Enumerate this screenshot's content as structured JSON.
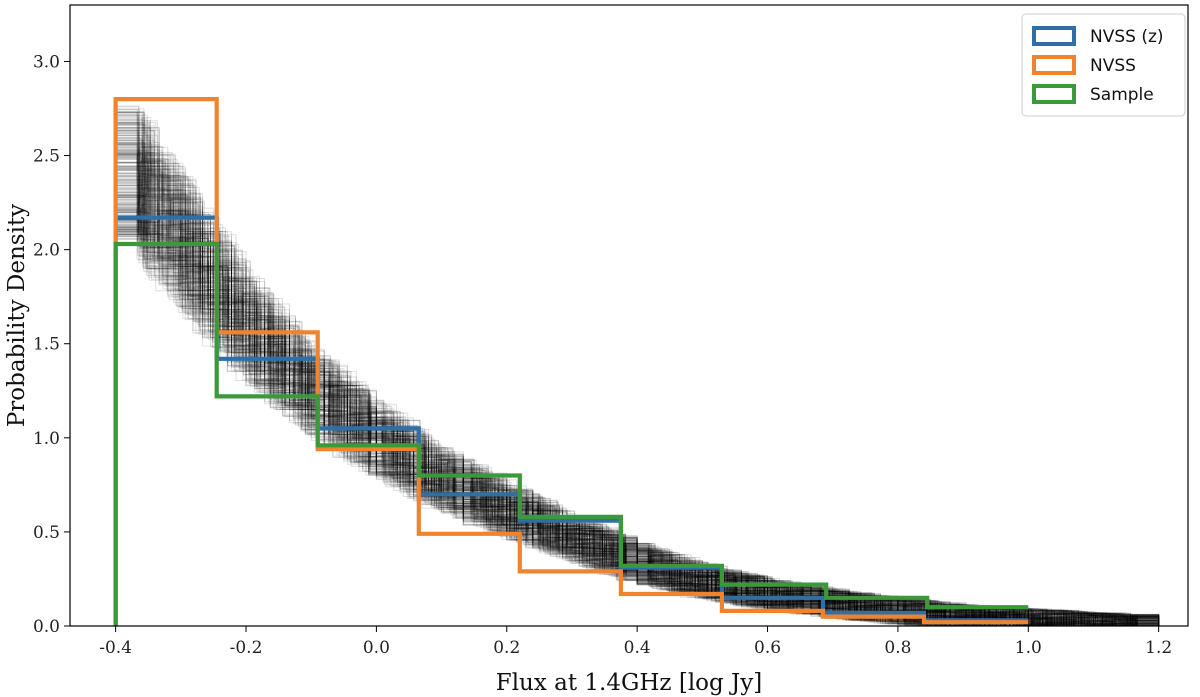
{
  "chart_data": {
    "type": "histogram-step",
    "title": "",
    "xlabel": "Flux at 1.4GHz [log Jy]",
    "ylabel": "Probability Density",
    "xlim": [
      -0.47,
      1.245
    ],
    "ylim": [
      0.0,
      3.3
    ],
    "xticks": [
      -0.4,
      -0.2,
      0.0,
      0.2,
      0.4,
      0.6,
      0.8,
      1.0,
      1.2
    ],
    "xtick_labels": [
      "-0.4",
      "-0.2",
      "0.0",
      "0.2",
      "0.4",
      "0.6",
      "0.8",
      "1.0",
      "1.2"
    ],
    "yticks": [
      0.0,
      0.5,
      1.0,
      1.5,
      2.0,
      2.5,
      3.0
    ],
    "ytick_labels": [
      "0.0",
      "0.5",
      "1.0",
      "1.5",
      "2.0",
      "2.5",
      "3.0"
    ],
    "legend_position": "top-right",
    "series": [
      {
        "name": "NVSS (z)",
        "color": "#2e6fa8",
        "bin_edges": [
          -0.4,
          -0.245,
          -0.09,
          0.065,
          0.22,
          0.375,
          0.53,
          0.685,
          0.84,
          1.0
        ],
        "values": [
          2.17,
          1.42,
          1.05,
          0.7,
          0.56,
          0.31,
          0.15,
          0.07,
          0.03
        ]
      },
      {
        "name": "NVSS",
        "color": "#f0832e",
        "bin_edges": [
          -0.4,
          -0.245,
          -0.09,
          0.065,
          0.22,
          0.375,
          0.53,
          0.685,
          0.84,
          1.0
        ],
        "values": [
          2.8,
          1.56,
          0.94,
          0.49,
          0.29,
          0.17,
          0.08,
          0.05,
          0.02
        ]
      },
      {
        "name": "Sample",
        "color": "#3a9a3a",
        "bin_edges": [
          -0.4,
          -0.245,
          -0.09,
          0.065,
          0.22,
          0.375,
          0.53,
          0.69,
          0.845,
          1.0
        ],
        "values": [
          2.03,
          1.22,
          0.96,
          0.8,
          0.58,
          0.32,
          0.22,
          0.15,
          0.1
        ]
      }
    ],
    "bootstrap_band": {
      "color": "#000000",
      "draws": 300,
      "x": [
        -0.4,
        -0.3,
        -0.2,
        -0.1,
        0.0,
        0.1,
        0.2,
        0.3,
        0.4,
        0.5,
        0.6,
        0.7,
        0.8,
        0.9,
        1.0,
        1.1,
        1.2
      ],
      "center": [
        2.5,
        2.05,
        1.6,
        1.25,
        1.0,
        0.78,
        0.62,
        0.47,
        0.34,
        0.24,
        0.17,
        0.12,
        0.08,
        0.05,
        0.03,
        0.012,
        0.0
      ]
    }
  }
}
